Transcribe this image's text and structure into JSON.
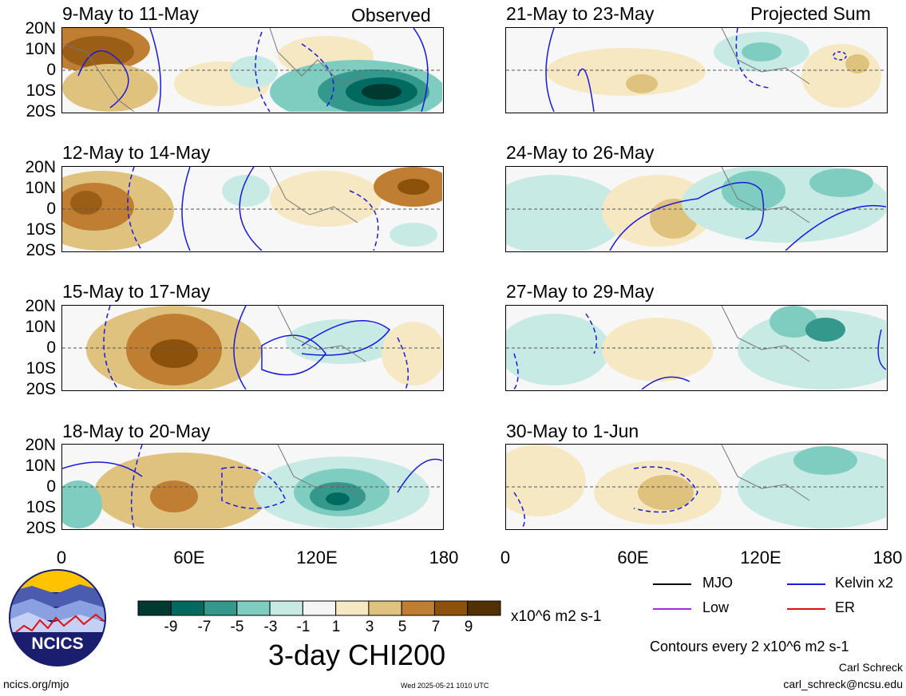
{
  "panels_left": [
    {
      "title": "9-May to 11-May",
      "tag": "Observed"
    },
    {
      "title": "12-May to 14-May",
      "tag": ""
    },
    {
      "title": "15-May to 17-May",
      "tag": ""
    },
    {
      "title": "18-May to 20-May",
      "tag": ""
    }
  ],
  "panels_right": [
    {
      "title": "21-May to 23-May",
      "tag": "Projected Sum"
    },
    {
      "title": "24-May to 26-May",
      "tag": ""
    },
    {
      "title": "27-May to 29-May",
      "tag": ""
    },
    {
      "title": "30-May to 1-Jun",
      "tag": ""
    }
  ],
  "y_ticks": [
    "20N",
    "10N",
    "0",
    "10S",
    "20S"
  ],
  "x_ticks": [
    "0",
    "60E",
    "120E",
    "180"
  ],
  "colorbar": {
    "colors": [
      "#00392f",
      "#006a60",
      "#35988c",
      "#7fcdc0",
      "#c7eae5",
      "#f5f5f5",
      "#f6e8c3",
      "#dfc27d",
      "#c07e32",
      "#8c510a",
      "#543005"
    ],
    "labels": [
      "-9",
      "-7",
      "-5",
      "-3",
      "-1",
      "1",
      "3",
      "5",
      "7",
      "9"
    ],
    "units": "x10^6 m2 s-1",
    "title": "3-day CHI200"
  },
  "legend": [
    {
      "label": "MJO",
      "color": "#000000"
    },
    {
      "label": "Kelvin x2",
      "color": "#1a1adb"
    },
    {
      "label": "Low",
      "color": "#9b30e0"
    },
    {
      "label": "ER",
      "color": "#e01010"
    }
  ],
  "contour_note": "Contours every 2 x10^6 m2 s-1",
  "author": "Carl Schreck",
  "email": "carl_schreck@ncsu.edu",
  "logo_text": "NCICS",
  "site": "ncics.org/mjo",
  "timestamp": "Wed 2025-05-21 1010 UTC"
}
